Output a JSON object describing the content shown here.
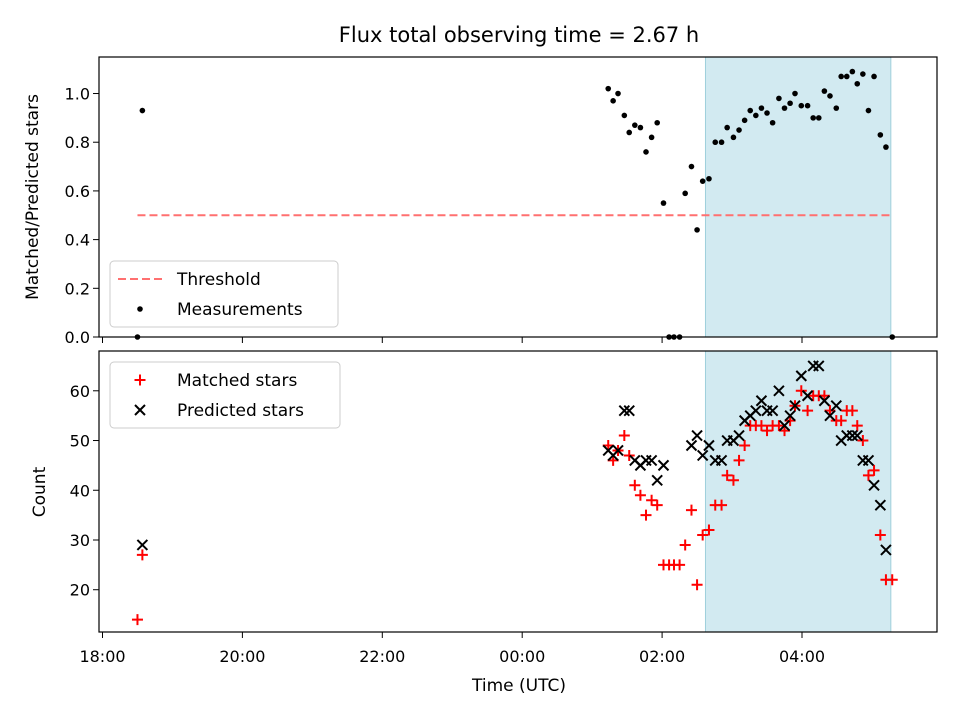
{
  "chart_data": {
    "title": "Flux total observing time = 2.67 h",
    "xlabel": "Time (UTC)",
    "x_unit": "hours since 18:00 UTC",
    "xlim": [
      -0.05,
      11.93
    ],
    "x_ticks": [
      {
        "value": 0,
        "label": "18:00"
      },
      {
        "value": 2,
        "label": "20:00"
      },
      {
        "value": 4,
        "label": "22:00"
      },
      {
        "value": 6,
        "label": "00:00"
      },
      {
        "value": 8,
        "label": "02:00"
      },
      {
        "value": 10,
        "label": "04:00"
      }
    ],
    "shaded_region": {
      "from": 8.62,
      "to": 11.27,
      "color": "#add8e6"
    },
    "panels": [
      {
        "type": "scatter",
        "ylabel": "Matched/Predicted stars",
        "ylim": [
          0,
          1.15
        ],
        "y_ticks": [
          0.0,
          0.2,
          0.4,
          0.6,
          0.8,
          1.0
        ],
        "y_tick_labels": [
          "0.0",
          "0.2",
          "0.4",
          "0.6",
          "0.8",
          "1.0"
        ],
        "legend": {
          "position": "lower-left",
          "entries": [
            "Threshold",
            "Measurements"
          ]
        },
        "threshold": {
          "name": "Threshold",
          "value": 0.5,
          "x_from": 0.5,
          "x_to": 11.3,
          "color": "#ff7070"
        },
        "series": [
          {
            "name": "Measurements",
            "color": "#000000",
            "marker": "dot",
            "points": [
              [
                0.5,
                0.0
              ],
              [
                0.57,
                0.93
              ],
              [
                7.23,
                1.02
              ],
              [
                7.3,
                0.97
              ],
              [
                7.37,
                1.0
              ],
              [
                7.46,
                0.91
              ],
              [
                7.53,
                0.84
              ],
              [
                7.61,
                0.87
              ],
              [
                7.69,
                0.86
              ],
              [
                7.77,
                0.76
              ],
              [
                7.85,
                0.82
              ],
              [
                7.93,
                0.88
              ],
              [
                8.02,
                0.55
              ],
              [
                8.1,
                0.0
              ],
              [
                8.17,
                0.0
              ],
              [
                8.25,
                0.0
              ],
              [
                8.33,
                0.59
              ],
              [
                8.42,
                0.7
              ],
              [
                8.5,
                0.44
              ],
              [
                8.58,
                0.64
              ],
              [
                8.67,
                0.65
              ],
              [
                8.76,
                0.8
              ],
              [
                8.85,
                0.8
              ],
              [
                8.93,
                0.86
              ],
              [
                9.02,
                0.82
              ],
              [
                9.1,
                0.85
              ],
              [
                9.18,
                0.89
              ],
              [
                9.26,
                0.93
              ],
              [
                9.34,
                0.91
              ],
              [
                9.42,
                0.94
              ],
              [
                9.5,
                0.92
              ],
              [
                9.58,
                0.88
              ],
              [
                9.67,
                0.98
              ],
              [
                9.75,
                0.94
              ],
              [
                9.83,
                0.96
              ],
              [
                9.9,
                1.0
              ],
              [
                9.99,
                0.95
              ],
              [
                10.08,
                0.95
              ],
              [
                10.16,
                0.9
              ],
              [
                10.24,
                0.9
              ],
              [
                10.32,
                1.01
              ],
              [
                10.4,
                0.99
              ],
              [
                10.49,
                0.94
              ],
              [
                10.56,
                1.07
              ],
              [
                10.64,
                1.07
              ],
              [
                10.72,
                1.09
              ],
              [
                10.79,
                1.04
              ],
              [
                10.87,
                1.08
              ],
              [
                10.95,
                0.93
              ],
              [
                11.03,
                1.07
              ],
              [
                11.12,
                0.83
              ],
              [
                11.2,
                0.78
              ],
              [
                11.29,
                0.0
              ]
            ]
          }
        ]
      },
      {
        "type": "scatter",
        "ylabel": "Count",
        "ylim": [
          11.5,
          68
        ],
        "y_ticks": [
          20,
          30,
          40,
          50,
          60
        ],
        "y_tick_labels": [
          "20",
          "30",
          "40",
          "50",
          "60"
        ],
        "legend": {
          "position": "top-left",
          "entries": [
            "Matched stars",
            "Predicted stars"
          ]
        },
        "series": [
          {
            "name": "Matched stars",
            "color": "#ff0000",
            "marker": "plus",
            "points": [
              [
                0.5,
                14
              ],
              [
                0.57,
                27
              ],
              [
                7.23,
                49
              ],
              [
                7.3,
                46
              ],
              [
                7.37,
                48
              ],
              [
                7.46,
                51
              ],
              [
                7.53,
                47
              ],
              [
                7.61,
                41
              ],
              [
                7.69,
                39
              ],
              [
                7.77,
                35
              ],
              [
                7.85,
                38
              ],
              [
                7.93,
                37
              ],
              [
                8.02,
                25
              ],
              [
                8.1,
                25
              ],
              [
                8.17,
                25
              ],
              [
                8.25,
                25
              ],
              [
                8.33,
                29
              ],
              [
                8.42,
                36
              ],
              [
                8.5,
                21
              ],
              [
                8.58,
                31
              ],
              [
                8.67,
                32
              ],
              [
                8.76,
                37
              ],
              [
                8.85,
                37
              ],
              [
                8.93,
                43
              ],
              [
                9.02,
                42
              ],
              [
                9.1,
                46
              ],
              [
                9.18,
                49
              ],
              [
                9.26,
                53
              ],
              [
                9.34,
                53
              ],
              [
                9.42,
                53
              ],
              [
                9.5,
                52
              ],
              [
                9.58,
                53
              ],
              [
                9.67,
                53
              ],
              [
                9.75,
                52
              ],
              [
                9.83,
                54
              ],
              [
                9.9,
                57
              ],
              [
                9.99,
                60
              ],
              [
                10.08,
                56
              ],
              [
                10.16,
                59
              ],
              [
                10.24,
                59
              ],
              [
                10.32,
                59
              ],
              [
                10.4,
                56
              ],
              [
                10.49,
                54
              ],
              [
                10.56,
                54
              ],
              [
                10.64,
                56
              ],
              [
                10.72,
                56
              ],
              [
                10.79,
                53
              ],
              [
                10.87,
                50
              ],
              [
                10.95,
                43
              ],
              [
                11.03,
                44
              ],
              [
                11.12,
                31
              ],
              [
                11.2,
                22
              ],
              [
                11.29,
                22
              ]
            ]
          },
          {
            "name": "Predicted stars",
            "color": "#000000",
            "marker": "x",
            "points": [
              [
                0.57,
                29
              ],
              [
                7.23,
                48
              ],
              [
                7.3,
                47
              ],
              [
                7.37,
                48
              ],
              [
                7.46,
                56
              ],
              [
                7.53,
                56
              ],
              [
                7.61,
                46
              ],
              [
                7.69,
                45
              ],
              [
                7.77,
                46
              ],
              [
                7.85,
                46
              ],
              [
                7.93,
                42
              ],
              [
                8.02,
                45
              ],
              [
                8.42,
                49
              ],
              [
                8.5,
                51
              ],
              [
                8.58,
                47
              ],
              [
                8.67,
                49
              ],
              [
                8.76,
                46
              ],
              [
                8.85,
                46
              ],
              [
                8.93,
                50
              ],
              [
                9.02,
                50
              ],
              [
                9.1,
                51
              ],
              [
                9.18,
                54
              ],
              [
                9.26,
                55
              ],
              [
                9.34,
                56
              ],
              [
                9.42,
                58
              ],
              [
                9.5,
                56
              ],
              [
                9.58,
                56
              ],
              [
                9.67,
                60
              ],
              [
                9.75,
                53
              ],
              [
                9.83,
                55
              ],
              [
                9.9,
                57
              ],
              [
                9.99,
                63
              ],
              [
                10.08,
                59
              ],
              [
                10.16,
                65
              ],
              [
                10.24,
                65
              ],
              [
                10.32,
                58
              ],
              [
                10.4,
                55
              ],
              [
                10.49,
                57
              ],
              [
                10.56,
                50
              ],
              [
                10.64,
                51
              ],
              [
                10.72,
                51
              ],
              [
                10.79,
                51
              ],
              [
                10.87,
                46
              ],
              [
                10.95,
                46
              ],
              [
                11.03,
                41
              ],
              [
                11.12,
                37
              ],
              [
                11.2,
                28
              ]
            ]
          }
        ]
      }
    ]
  }
}
